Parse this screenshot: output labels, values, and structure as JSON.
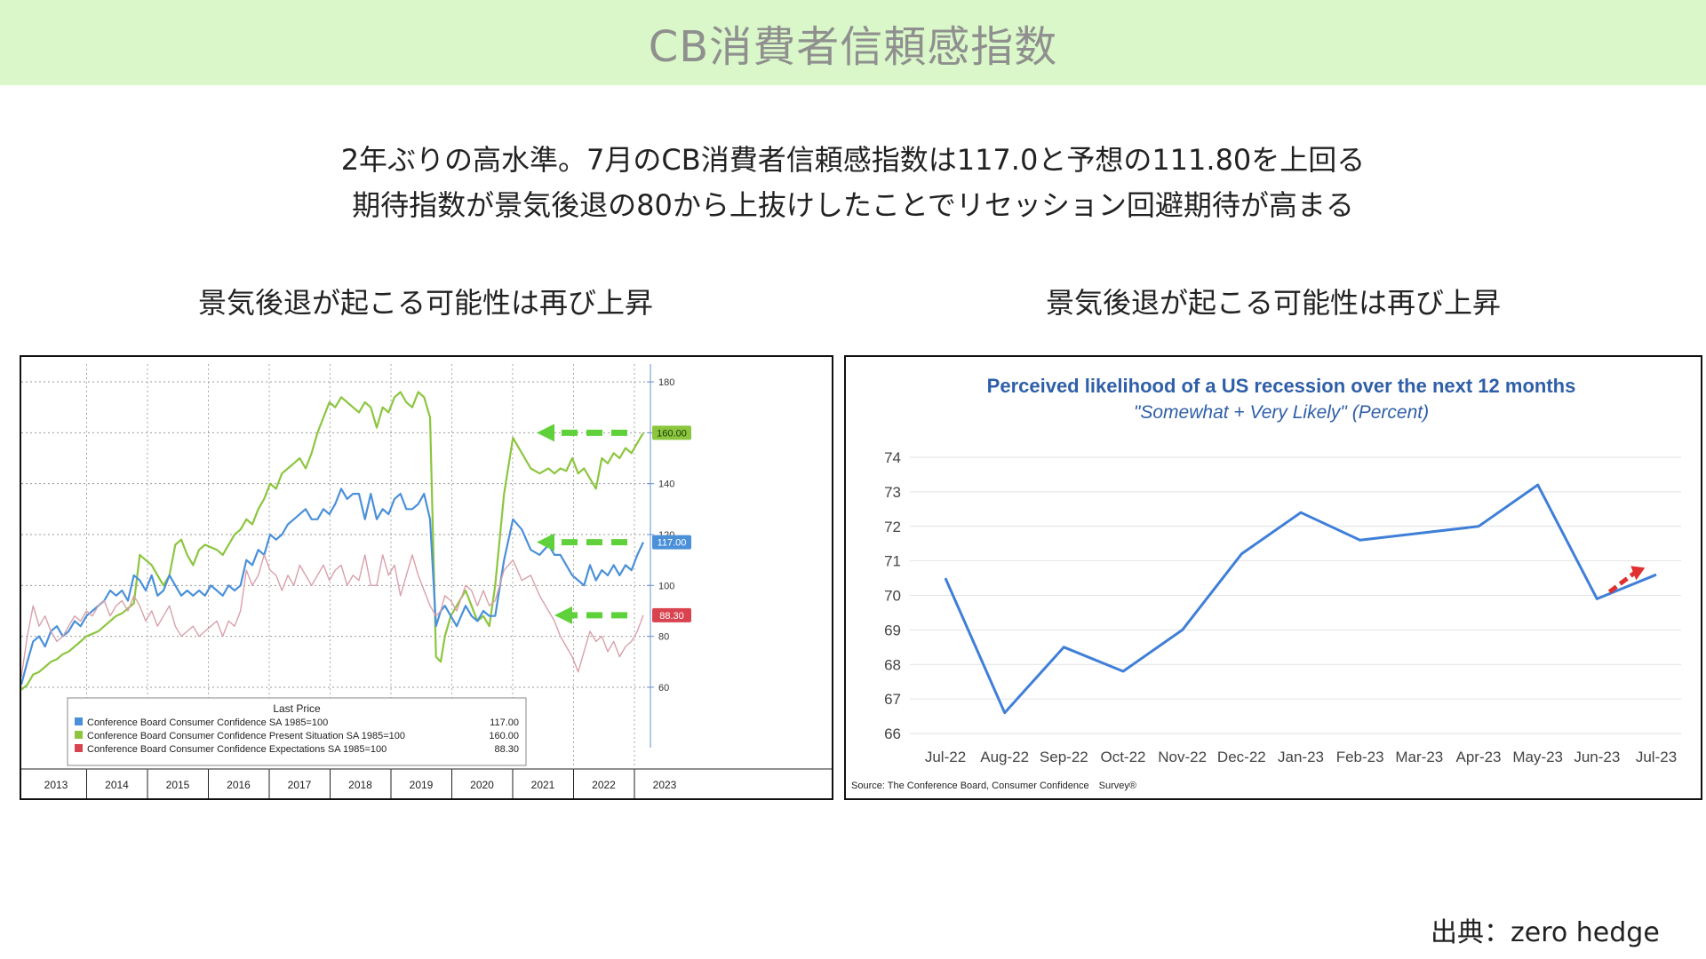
{
  "header": {
    "title": "CB消費者信頼感指数"
  },
  "subtitle": {
    "line1": "2年ぶりの高水準。7月のCB消費者信頼感指数は117.0と予想の111.80を上回る",
    "line2": "期待指数が景気後退の80から上抜けしたことでリセッション回避期待が高まる"
  },
  "captions": {
    "left": "景気後退が起こる可能性は再び上昇",
    "right": "景気後退が起こる可能性は再び上昇"
  },
  "source": "出典：zero hedge",
  "colors": {
    "header_bg": "#d9f7c8",
    "blue": "#4a90d9",
    "green": "#8cc63f",
    "red": "#d9a0aa",
    "arrow_green": "#5fd13a",
    "right_line": "#3f7fd8",
    "right_title": "#2f5fa8",
    "arrow_red": "#e03030"
  },
  "chart_data": [
    {
      "type": "line",
      "x_axis_labels": [
        "2013",
        "2014",
        "2015",
        "2016",
        "2017",
        "2018",
        "2019",
        "2020",
        "2021",
        "2022",
        "2023"
      ],
      "y_ticks": [
        60,
        80,
        100,
        120,
        140,
        160,
        180
      ],
      "ylim": [
        53,
        187
      ],
      "legend": {
        "title": "Last Price",
        "placement": "bottom-left",
        "entries": [
          {
            "name": "Conference Board Consumer Confidence SA 1985=100",
            "value": "117.00",
            "color": "#4a90d9"
          },
          {
            "name": "Conference Board Consumer Confidence Present Situation SA 1985=100",
            "value": "160.00",
            "color": "#8cc63f"
          },
          {
            "name": "Conference Board Consumer Confidence Expectations SA 1985=100",
            "value": "88.30",
            "color": "#d9434f"
          }
        ]
      },
      "value_tags": [
        {
          "label": "160.00",
          "value": 160,
          "color": "#8cc63f"
        },
        {
          "label": "117.00",
          "value": 117,
          "color": "#4a90d9"
        },
        {
          "label": "88.30",
          "value": 88.3,
          "color": "#d9434f"
        }
      ],
      "series": [
        {
          "name": "Present Situation",
          "color": "#8cc63f",
          "x": [
            2013.0,
            2013.1,
            2013.2,
            2013.3,
            2013.4,
            2013.5,
            2013.6,
            2013.7,
            2013.8,
            2013.9,
            2014.0,
            2014.1,
            2014.2,
            2014.3,
            2014.4,
            2014.5,
            2014.6,
            2014.7,
            2014.8,
            2014.9,
            2015.0,
            2015.1,
            2015.2,
            2015.3,
            2015.4,
            2015.5,
            2015.6,
            2015.7,
            2015.8,
            2015.9,
            2016.0,
            2016.1,
            2016.2,
            2016.3,
            2016.4,
            2016.5,
            2016.6,
            2016.7,
            2016.8,
            2016.9,
            2017.0,
            2017.1,
            2017.2,
            2017.3,
            2017.4,
            2017.5,
            2017.6,
            2017.7,
            2017.8,
            2017.9,
            2018.0,
            2018.1,
            2018.2,
            2018.3,
            2018.4,
            2018.5,
            2018.6,
            2018.7,
            2018.8,
            2018.9,
            2019.0,
            2019.1,
            2019.2,
            2019.3,
            2019.4,
            2019.5,
            2019.6,
            2019.7,
            2019.8,
            2019.9,
            2020.0,
            2020.08,
            2020.15,
            2020.25,
            2020.35,
            2020.5,
            2020.6,
            2020.7,
            2020.8,
            2020.9,
            2021.0,
            2021.15,
            2021.3,
            2021.45,
            2021.6,
            2021.75,
            2021.9,
            2022.0,
            2022.1,
            2022.2,
            2022.3,
            2022.4,
            2022.5,
            2022.6,
            2022.7,
            2022.8,
            2022.9,
            2023.0,
            2023.1,
            2023.2,
            2023.3,
            2023.4,
            2023.5
          ],
          "values": [
            59,
            61,
            65,
            66,
            68,
            70,
            71,
            73,
            74,
            76,
            78,
            80,
            81,
            82,
            84,
            86,
            88,
            89,
            91,
            93,
            112,
            110,
            108,
            104,
            100,
            104,
            116,
            118,
            112,
            108,
            114,
            116,
            115,
            114,
            112,
            116,
            120,
            122,
            126,
            124,
            130,
            134,
            140,
            138,
            144,
            146,
            148,
            150,
            146,
            152,
            160,
            166,
            172,
            170,
            174,
            172,
            170,
            168,
            172,
            170,
            162,
            170,
            168,
            174,
            176,
            172,
            170,
            176,
            174,
            166,
            72,
            70,
            80,
            88,
            92,
            98,
            92,
            86,
            88,
            84,
            100,
            136,
            158,
            152,
            146,
            144,
            146,
            144,
            146,
            145,
            150,
            144,
            146,
            142,
            138,
            150,
            148,
            152,
            150,
            154,
            152,
            156,
            160
          ]
        },
        {
          "name": "Consumer Confidence",
          "color": "#4a90d9",
          "x": [
            2013.0,
            2013.1,
            2013.2,
            2013.3,
            2013.4,
            2013.5,
            2013.6,
            2013.7,
            2013.8,
            2013.9,
            2014.0,
            2014.1,
            2014.2,
            2014.3,
            2014.4,
            2014.5,
            2014.6,
            2014.7,
            2014.8,
            2014.9,
            2015.0,
            2015.1,
            2015.2,
            2015.3,
            2015.4,
            2015.5,
            2015.6,
            2015.7,
            2015.8,
            2015.9,
            2016.0,
            2016.1,
            2016.2,
            2016.3,
            2016.4,
            2016.5,
            2016.6,
            2016.7,
            2016.8,
            2016.9,
            2017.0,
            2017.1,
            2017.2,
            2017.3,
            2017.4,
            2017.5,
            2017.6,
            2017.7,
            2017.8,
            2017.9,
            2018.0,
            2018.1,
            2018.2,
            2018.3,
            2018.4,
            2018.5,
            2018.6,
            2018.7,
            2018.8,
            2018.9,
            2019.0,
            2019.1,
            2019.2,
            2019.3,
            2019.4,
            2019.5,
            2019.6,
            2019.7,
            2019.8,
            2019.9,
            2020.0,
            2020.08,
            2020.15,
            2020.25,
            2020.35,
            2020.5,
            2020.6,
            2020.7,
            2020.8,
            2020.9,
            2021.0,
            2021.15,
            2021.3,
            2021.45,
            2021.6,
            2021.75,
            2021.9,
            2022.0,
            2022.1,
            2022.2,
            2022.3,
            2022.4,
            2022.5,
            2022.6,
            2022.7,
            2022.8,
            2022.9,
            2023.0,
            2023.1,
            2023.2,
            2023.3,
            2023.4,
            2023.5
          ],
          "values": [
            61,
            70,
            78,
            80,
            76,
            82,
            84,
            80,
            82,
            86,
            84,
            88,
            90,
            92,
            94,
            98,
            96,
            98,
            94,
            104,
            102,
            98,
            104,
            96,
            98,
            104,
            100,
            96,
            98,
            96,
            98,
            96,
            100,
            98,
            96,
            100,
            98,
            100,
            110,
            108,
            114,
            112,
            120,
            118,
            120,
            124,
            126,
            128,
            130,
            126,
            126,
            130,
            128,
            132,
            138,
            134,
            136,
            136,
            126,
            136,
            126,
            130,
            128,
            134,
            136,
            130,
            130,
            132,
            136,
            126,
            84,
            90,
            92,
            88,
            84,
            92,
            88,
            86,
            90,
            88,
            88,
            110,
            126,
            122,
            114,
            112,
            116,
            112,
            112,
            108,
            104,
            102,
            100,
            108,
            102,
            106,
            104,
            108,
            104,
            108,
            106,
            112,
            117
          ]
        },
        {
          "name": "Expectations",
          "color": "#d9a0aa",
          "x": [
            2013.0,
            2013.1,
            2013.2,
            2013.3,
            2013.4,
            2013.5,
            2013.6,
            2013.7,
            2013.8,
            2013.9,
            2014.0,
            2014.1,
            2014.2,
            2014.3,
            2014.4,
            2014.5,
            2014.6,
            2014.7,
            2014.8,
            2014.9,
            2015.0,
            2015.1,
            2015.2,
            2015.3,
            2015.4,
            2015.5,
            2015.6,
            2015.7,
            2015.8,
            2015.9,
            2016.0,
            2016.1,
            2016.2,
            2016.3,
            2016.4,
            2016.5,
            2016.6,
            2016.7,
            2016.8,
            2016.9,
            2017.0,
            2017.1,
            2017.2,
            2017.3,
            2017.4,
            2017.5,
            2017.6,
            2017.7,
            2017.8,
            2017.9,
            2018.0,
            2018.1,
            2018.2,
            2018.3,
            2018.4,
            2018.5,
            2018.6,
            2018.7,
            2018.8,
            2018.9,
            2019.0,
            2019.1,
            2019.2,
            2019.3,
            2019.4,
            2019.5,
            2019.6,
            2019.7,
            2019.8,
            2019.9,
            2020.0,
            2020.08,
            2020.15,
            2020.25,
            2020.35,
            2020.5,
            2020.6,
            2020.7,
            2020.8,
            2020.9,
            2021.0,
            2021.15,
            2021.3,
            2021.45,
            2021.6,
            2021.75,
            2021.9,
            2022.0,
            2022.1,
            2022.2,
            2022.3,
            2022.4,
            2022.5,
            2022.6,
            2022.7,
            2022.8,
            2022.9,
            2023.0,
            2023.1,
            2023.2,
            2023.3,
            2023.4,
            2023.5
          ],
          "values": [
            64,
            80,
            92,
            84,
            88,
            82,
            78,
            80,
            84,
            88,
            86,
            90,
            88,
            92,
            94,
            88,
            92,
            94,
            90,
            96,
            92,
            86,
            90,
            84,
            88,
            92,
            84,
            80,
            82,
            84,
            80,
            82,
            84,
            86,
            80,
            86,
            84,
            90,
            106,
            100,
            104,
            112,
            106,
            104,
            98,
            104,
            100,
            108,
            104,
            100,
            104,
            108,
            102,
            106,
            108,
            100,
            104,
            102,
            112,
            100,
            100,
            112,
            104,
            108,
            96,
            104,
            112,
            104,
            98,
            92,
            88,
            90,
            96,
            94,
            90,
            100,
            98,
            92,
            98,
            92,
            94,
            106,
            110,
            102,
            104,
            96,
            90,
            86,
            80,
            76,
            72,
            66,
            74,
            82,
            78,
            80,
            74,
            78,
            72,
            76,
            78,
            82,
            88.3
          ]
        }
      ]
    },
    {
      "type": "line",
      "title": "Perceived likelihood of a US recession over the next 12 months",
      "subtitle": "\"Somewhat + Very Likely\" (Percent)",
      "categories": [
        "Jul-22",
        "Aug-22",
        "Sep-22",
        "Oct-22",
        "Nov-22",
        "Dec-22",
        "Jan-23",
        "Feb-23",
        "Mar-23",
        "Apr-23",
        "May-23",
        "Jun-23",
        "Jul-23"
      ],
      "values": [
        70.5,
        66.6,
        68.5,
        67.8,
        69.0,
        71.2,
        72.4,
        71.6,
        71.8,
        72.0,
        73.2,
        69.9,
        70.6
      ],
      "y_ticks": [
        66,
        67,
        68,
        69,
        70,
        71,
        72,
        73,
        74
      ],
      "ylim": [
        66,
        74
      ],
      "grid": true,
      "source": "Source: The Conference Board, Consumer Confidence　Survey®"
    }
  ]
}
